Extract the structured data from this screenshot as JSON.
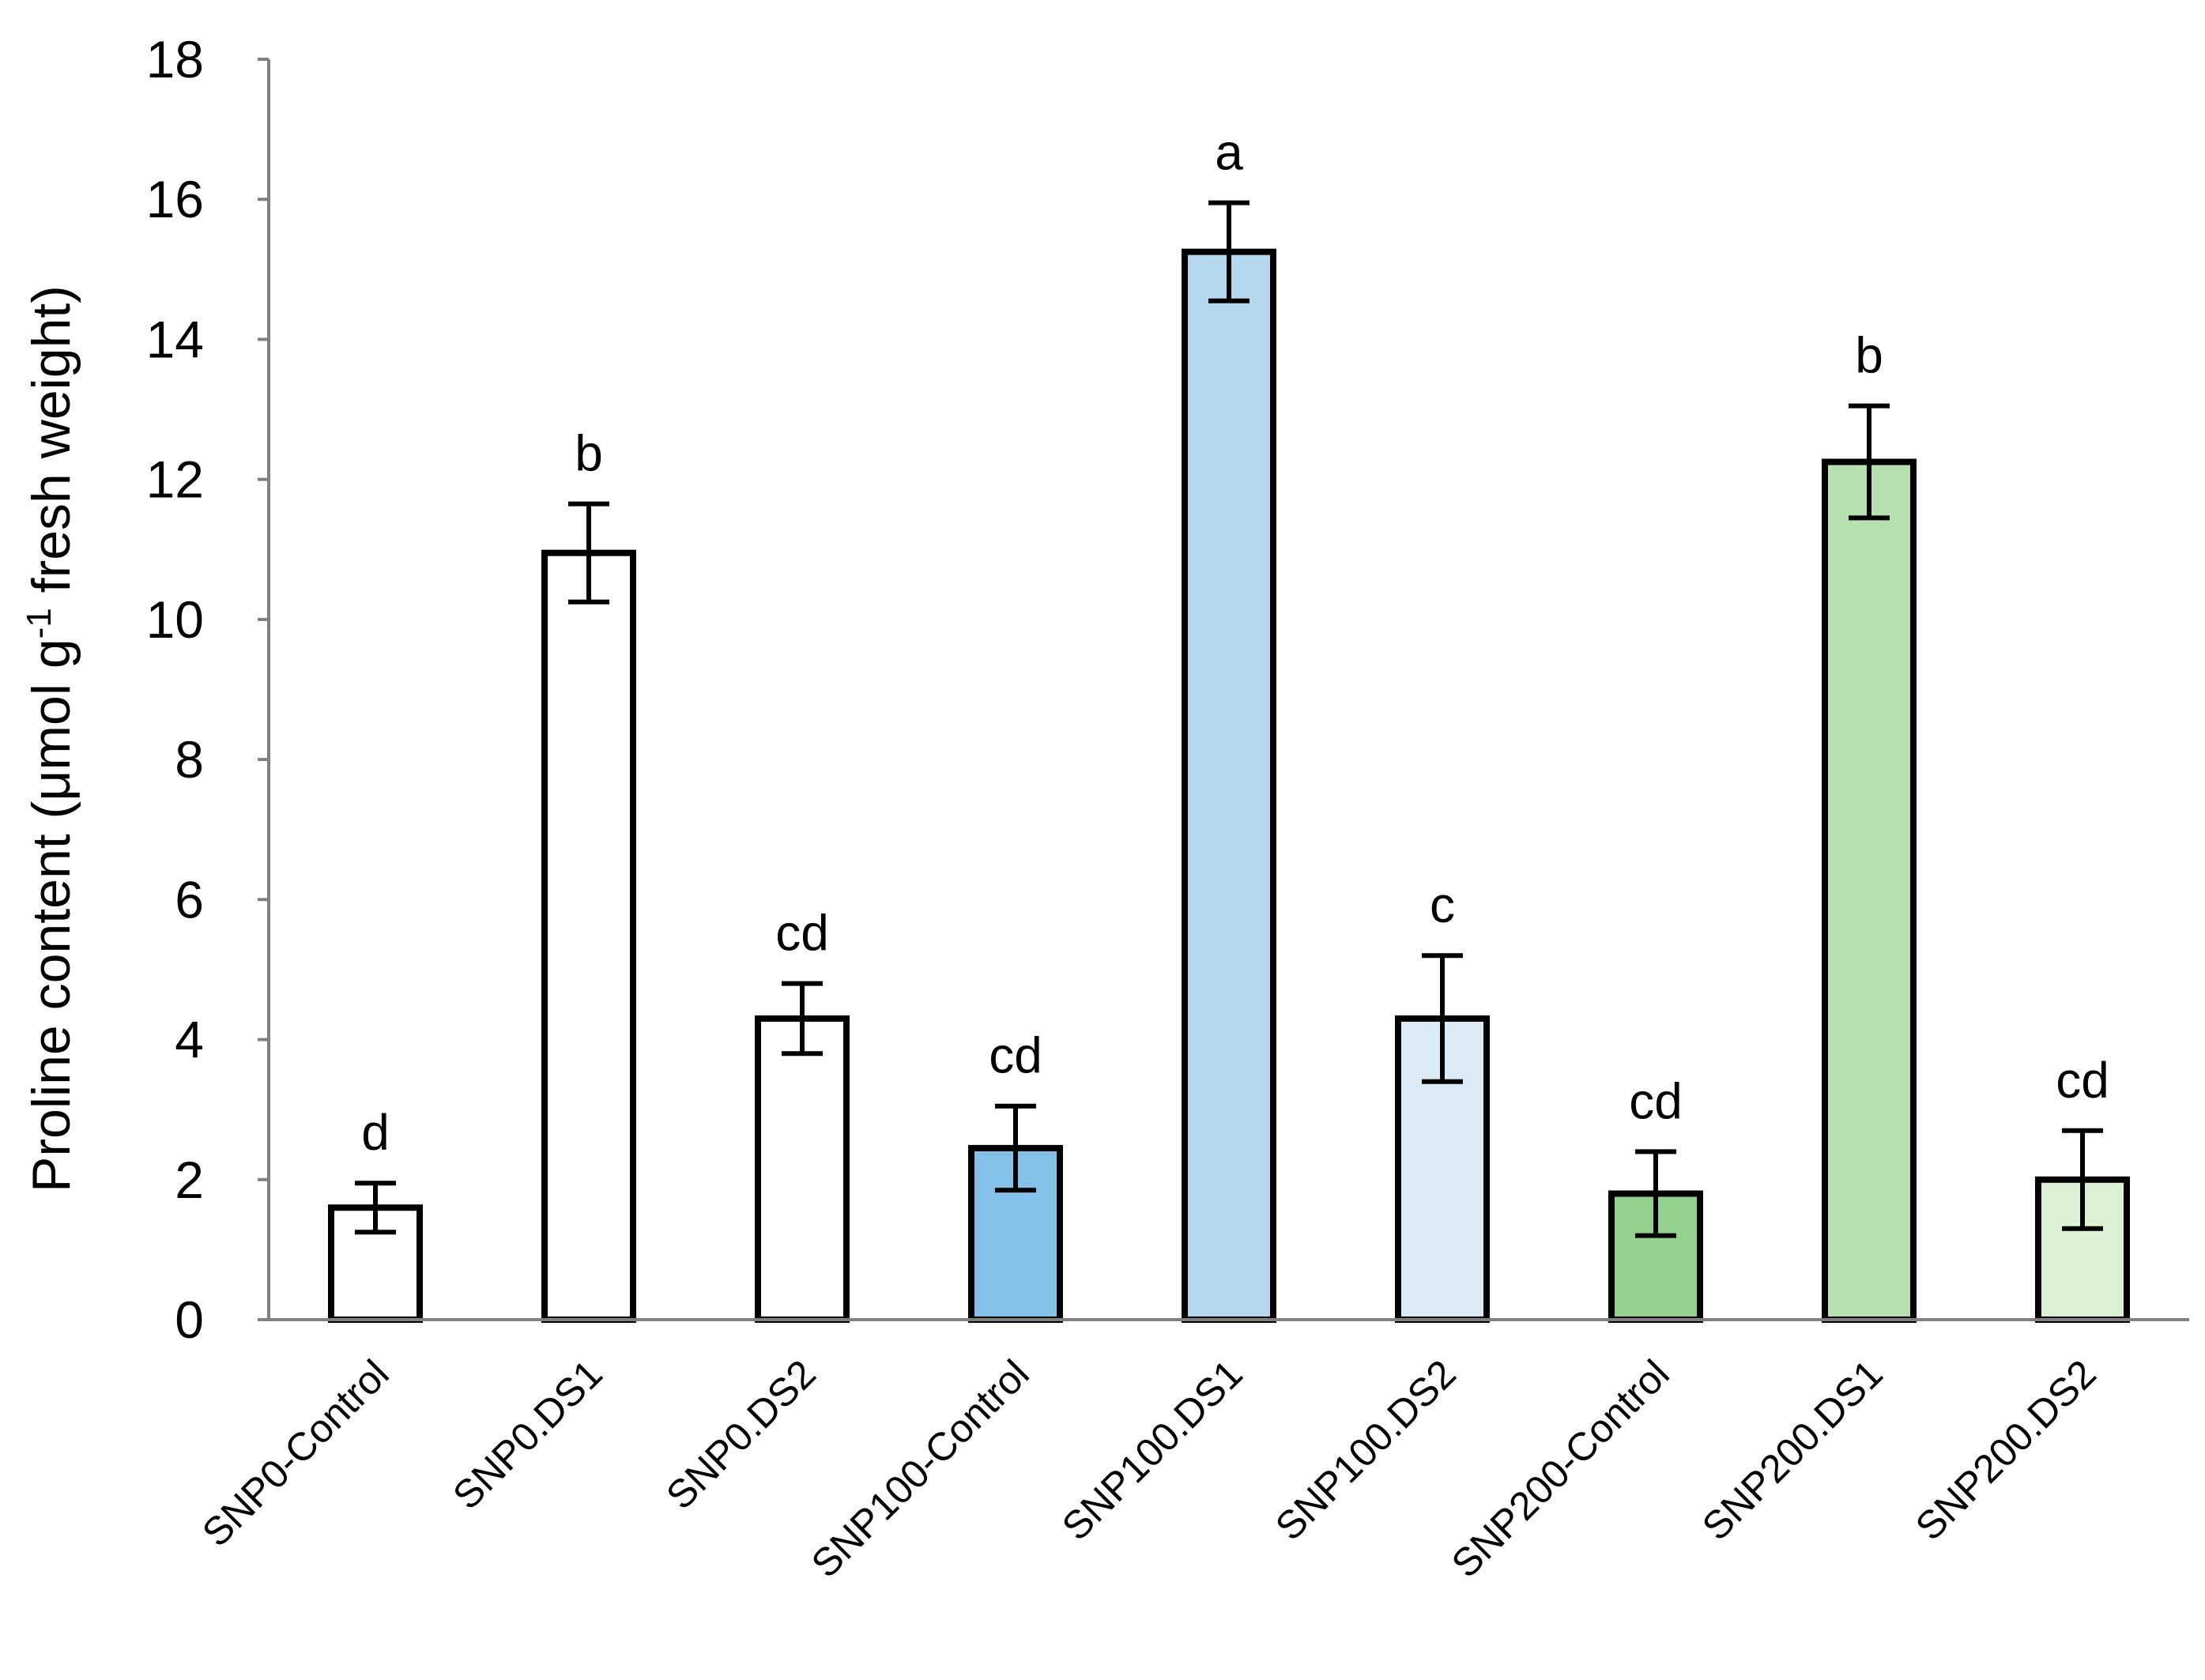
{
  "chart_data": {
    "type": "bar",
    "title": "",
    "xlabel": "",
    "ylabel_main": "Proline content  (μmol g",
    "ylabel_sup": "-1",
    "ylabel_tail": " fresh weight)",
    "ylim": [
      0,
      18
    ],
    "yticks": [
      0,
      2,
      4,
      6,
      8,
      10,
      12,
      14,
      16,
      18
    ],
    "grid": false,
    "legend": "none",
    "categories": [
      "SNP0-Control",
      "SNP0.DS1",
      "SNP0.DS2",
      "SNP100-Control",
      "SNP100.DS1",
      "SNP100.DS2",
      "SNP200-Control",
      "SNP200.DS1",
      "SNP200.DS2"
    ],
    "values": [
      1.6,
      10.95,
      4.3,
      2.45,
      15.25,
      4.3,
      1.8,
      12.25,
      2.0
    ],
    "errors": [
      0.35,
      0.7,
      0.5,
      0.6,
      0.7,
      0.9,
      0.6,
      0.8,
      0.7
    ],
    "significance": [
      "d",
      "b",
      "cd",
      "cd",
      "a",
      "c",
      "cd",
      "b",
      "cd"
    ],
    "colors": [
      "#ffffff",
      "#ffffff",
      "#ffffff",
      "#85c0e8",
      "#b5d8f0",
      "#daeaf7",
      "#94d18c",
      "#b7e0b0",
      "#dcf0d6"
    ],
    "edge_color": "#000000",
    "axis_color": "#808080"
  }
}
